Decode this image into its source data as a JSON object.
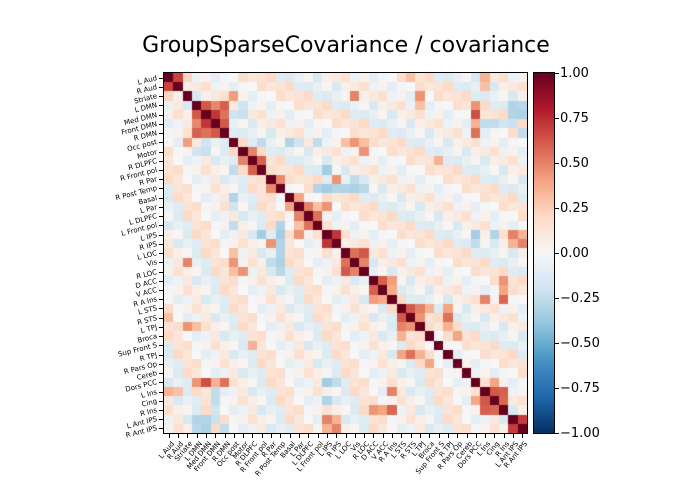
{
  "figure": {
    "title": "GroupSparseCovariance / covariance",
    "background_color": "#ffffff"
  },
  "chart_data": {
    "type": "heatmap",
    "title": "GroupSparseCovariance / covariance",
    "matrix_size": 39,
    "labels": [
      "L Aud",
      "R Aud",
      "Striate",
      "L DMN",
      "Med DMN",
      "Front DMN",
      "R DMN",
      "Occ post",
      "Motor",
      "R DLPFC",
      "R Front pol",
      "R Par",
      "R Post Temp",
      "Basal",
      "L Par",
      "L DLPFC",
      "L Front pol",
      "L IPS",
      "R IPS",
      "L LOC",
      "Vis",
      "R LOC",
      "D ACC",
      "V ACC",
      "R A Ins",
      "L STS",
      "R STS",
      "L TPJ",
      "Broca",
      "Sup Front S",
      "R TPJ",
      "R Pars Op",
      "Cereb",
      "Dors PCC",
      "L Ins",
      "Cing",
      "R Ins",
      "L Ant IPS",
      "R Ant IPS"
    ],
    "vmin": -1.0,
    "vmax": 1.0,
    "grid": false,
    "legend_position": "right-colorbar",
    "colormap": {
      "name": "RdBu_r",
      "stops": [
        [
          0.0,
          "#053061"
        ],
        [
          0.1,
          "#2166ac"
        ],
        [
          0.2,
          "#4393c3"
        ],
        [
          0.3,
          "#92c5de"
        ],
        [
          0.4,
          "#d1e5f0"
        ],
        [
          0.5,
          "#f7f7f7"
        ],
        [
          0.6,
          "#fddbc7"
        ],
        [
          0.7,
          "#f4a582"
        ],
        [
          0.8,
          "#d6604d"
        ],
        [
          0.9,
          "#b2182b"
        ],
        [
          1.0,
          "#67001f"
        ]
      ]
    },
    "colorbar_ticks": [
      {
        "value": 1.0,
        "label": "1.00"
      },
      {
        "value": 0.75,
        "label": "0.75"
      },
      {
        "value": 0.5,
        "label": "0.50"
      },
      {
        "value": 0.25,
        "label": "0.25"
      },
      {
        "value": 0.0,
        "label": "0.00"
      },
      {
        "value": -0.25,
        "label": "−0.25"
      },
      {
        "value": -0.5,
        "label": "−0.50"
      },
      {
        "value": -0.75,
        "label": "−0.75"
      },
      {
        "value": -1.0,
        "label": "−1.00"
      }
    ],
    "diagonal_value": 1.0,
    "notable_cells": [
      [
        0,
        1,
        0.68
      ],
      [
        0,
        2,
        0.22
      ],
      [
        0,
        26,
        0.3
      ],
      [
        0,
        34,
        0.35
      ],
      [
        1,
        34,
        0.3
      ],
      [
        2,
        7,
        0.42
      ],
      [
        2,
        20,
        0.5
      ],
      [
        2,
        27,
        0.45
      ],
      [
        3,
        27,
        0.3
      ],
      [
        3,
        4,
        0.62
      ],
      [
        3,
        5,
        0.48
      ],
      [
        3,
        6,
        0.6
      ],
      [
        4,
        5,
        0.72
      ],
      [
        4,
        6,
        0.55
      ],
      [
        5,
        6,
        0.62
      ],
      [
        3,
        33,
        0.45
      ],
      [
        4,
        33,
        0.65
      ],
      [
        5,
        33,
        0.35
      ],
      [
        6,
        33,
        0.55
      ],
      [
        3,
        37,
        -0.3
      ],
      [
        3,
        38,
        -0.28
      ],
      [
        4,
        37,
        -0.3
      ],
      [
        4,
        38,
        -0.32
      ],
      [
        5,
        37,
        -0.22
      ],
      [
        6,
        38,
        -0.25
      ],
      [
        4,
        7,
        -0.2
      ],
      [
        4,
        8,
        -0.22
      ],
      [
        3,
        8,
        -0.2
      ],
      [
        7,
        10,
        -0.25
      ],
      [
        7,
        13,
        -0.3
      ],
      [
        7,
        14,
        -0.2
      ],
      [
        7,
        16,
        -0.25
      ],
      [
        7,
        19,
        0.3
      ],
      [
        7,
        20,
        0.45
      ],
      [
        7,
        21,
        0.3
      ],
      [
        8,
        9,
        0.5
      ],
      [
        9,
        10,
        0.6
      ],
      [
        8,
        21,
        0.45
      ],
      [
        9,
        29,
        0.35
      ],
      [
        10,
        17,
        -0.35
      ],
      [
        11,
        12,
        0.48
      ],
      [
        11,
        18,
        0.45
      ],
      [
        11,
        20,
        -0.25
      ],
      [
        12,
        16,
        -0.3
      ],
      [
        12,
        17,
        -0.35
      ],
      [
        12,
        18,
        -0.3
      ],
      [
        12,
        19,
        -0.3
      ],
      [
        12,
        20,
        -0.32
      ],
      [
        12,
        21,
        -0.28
      ],
      [
        13,
        14,
        0.4
      ],
      [
        14,
        15,
        0.5
      ],
      [
        14,
        16,
        0.3
      ],
      [
        15,
        16,
        0.55
      ],
      [
        14,
        17,
        0.45
      ],
      [
        17,
        18,
        0.72
      ],
      [
        17,
        37,
        0.5
      ],
      [
        17,
        38,
        0.35
      ],
      [
        18,
        37,
        0.35
      ],
      [
        18,
        38,
        0.5
      ],
      [
        17,
        33,
        -0.35
      ],
      [
        17,
        35,
        -0.3
      ],
      [
        18,
        33,
        -0.25
      ],
      [
        19,
        20,
        0.55
      ],
      [
        19,
        21,
        0.62
      ],
      [
        20,
        21,
        0.5
      ],
      [
        22,
        23,
        0.6
      ],
      [
        22,
        24,
        0.42
      ],
      [
        23,
        24,
        0.38
      ],
      [
        22,
        36,
        0.45
      ],
      [
        23,
        36,
        0.4
      ],
      [
        24,
        36,
        0.58
      ],
      [
        24,
        34,
        0.5
      ],
      [
        25,
        26,
        0.62
      ],
      [
        25,
        27,
        0.5
      ],
      [
        26,
        27,
        0.45
      ],
      [
        26,
        30,
        0.55
      ],
      [
        25,
        30,
        0.4
      ],
      [
        27,
        30,
        0.35
      ],
      [
        25,
        28,
        0.35
      ],
      [
        28,
        31,
        0.4
      ],
      [
        33,
        35,
        0.4
      ],
      [
        34,
        35,
        0.62
      ],
      [
        34,
        36,
        0.6
      ],
      [
        35,
        36,
        0.58
      ],
      [
        5,
        34,
        -0.25
      ],
      [
        5,
        35,
        -0.25
      ],
      [
        5,
        36,
        -0.2
      ],
      [
        37,
        38,
        0.7
      ]
    ],
    "background_noise": {
      "cycle": [
        0.06,
        -0.1,
        0.14,
        0.02,
        -0.06,
        0.18,
        -0.14,
        0.1,
        -0.02,
        0.2,
        -0.16,
        0.04,
        0.12,
        -0.08,
        0.16,
        0.0,
        -0.12
      ],
      "index_formula": "cycle[(min(i,j)*3 + max(i,j)*7) % 17]"
    }
  }
}
